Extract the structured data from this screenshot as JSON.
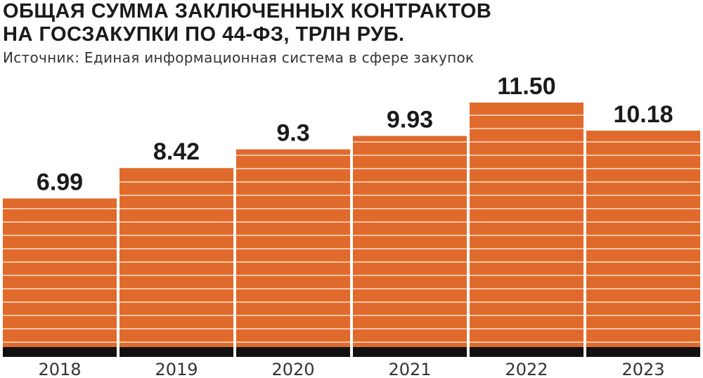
{
  "title_lines": [
    "ОБЩАЯ СУММА ЗАКЛЮЧЕННЫХ КОНТРАКТОВ",
    "НА ГОСЗАКУПКИ ПО 44-ФЗ, ТРЛН РУБ."
  ],
  "source": "Источник: Единая информационная система в сфере закупок",
  "colors": {
    "bar": "#e06a2b",
    "stripe": "#f4c2a4",
    "base": "#111111"
  },
  "chart_data": {
    "type": "bar",
    "title": "ОБЩАЯ СУММА ЗАКЛЮЧЕННЫХ КОНТРАКТОВ НА ГОСЗАКУПКИ ПО 44-ФЗ, ТРЛН РУБ.",
    "categories": [
      "2018",
      "2019",
      "2020",
      "2021",
      "2022",
      "2023"
    ],
    "values": [
      6.99,
      8.42,
      9.3,
      9.93,
      11.5,
      10.18
    ],
    "value_labels": [
      "6.99",
      "8.42",
      "9.3",
      "9.93",
      "11.50",
      "10.18"
    ],
    "ylim": [
      0,
      11.5
    ],
    "grid": false,
    "legend": "none"
  }
}
